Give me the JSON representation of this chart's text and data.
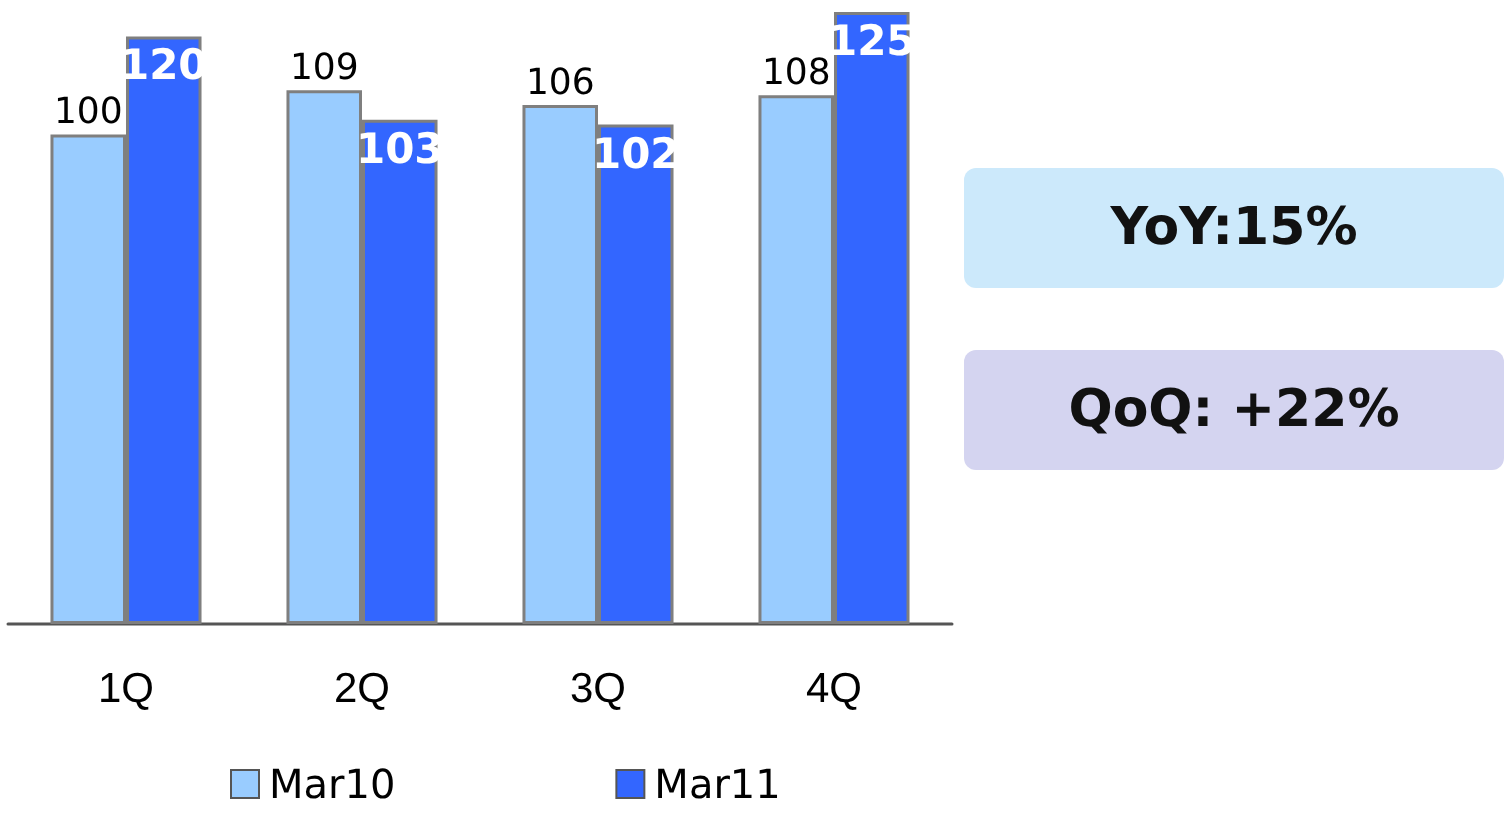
{
  "chart_data": {
    "type": "bar",
    "categories": [
      "1Q",
      "2Q",
      "3Q",
      "4Q"
    ],
    "series": [
      {
        "name": "Mar10",
        "color": "#99ccff",
        "values": [
          100,
          109,
          106,
          108
        ]
      },
      {
        "name": "Mar11",
        "color": "#3366ff",
        "values": [
          120,
          103,
          102,
          125
        ]
      }
    ],
    "data_labels": true,
    "legend": "bottom",
    "annotations": [
      "YoY:15%",
      "QoQ: +22%"
    ]
  }
}
